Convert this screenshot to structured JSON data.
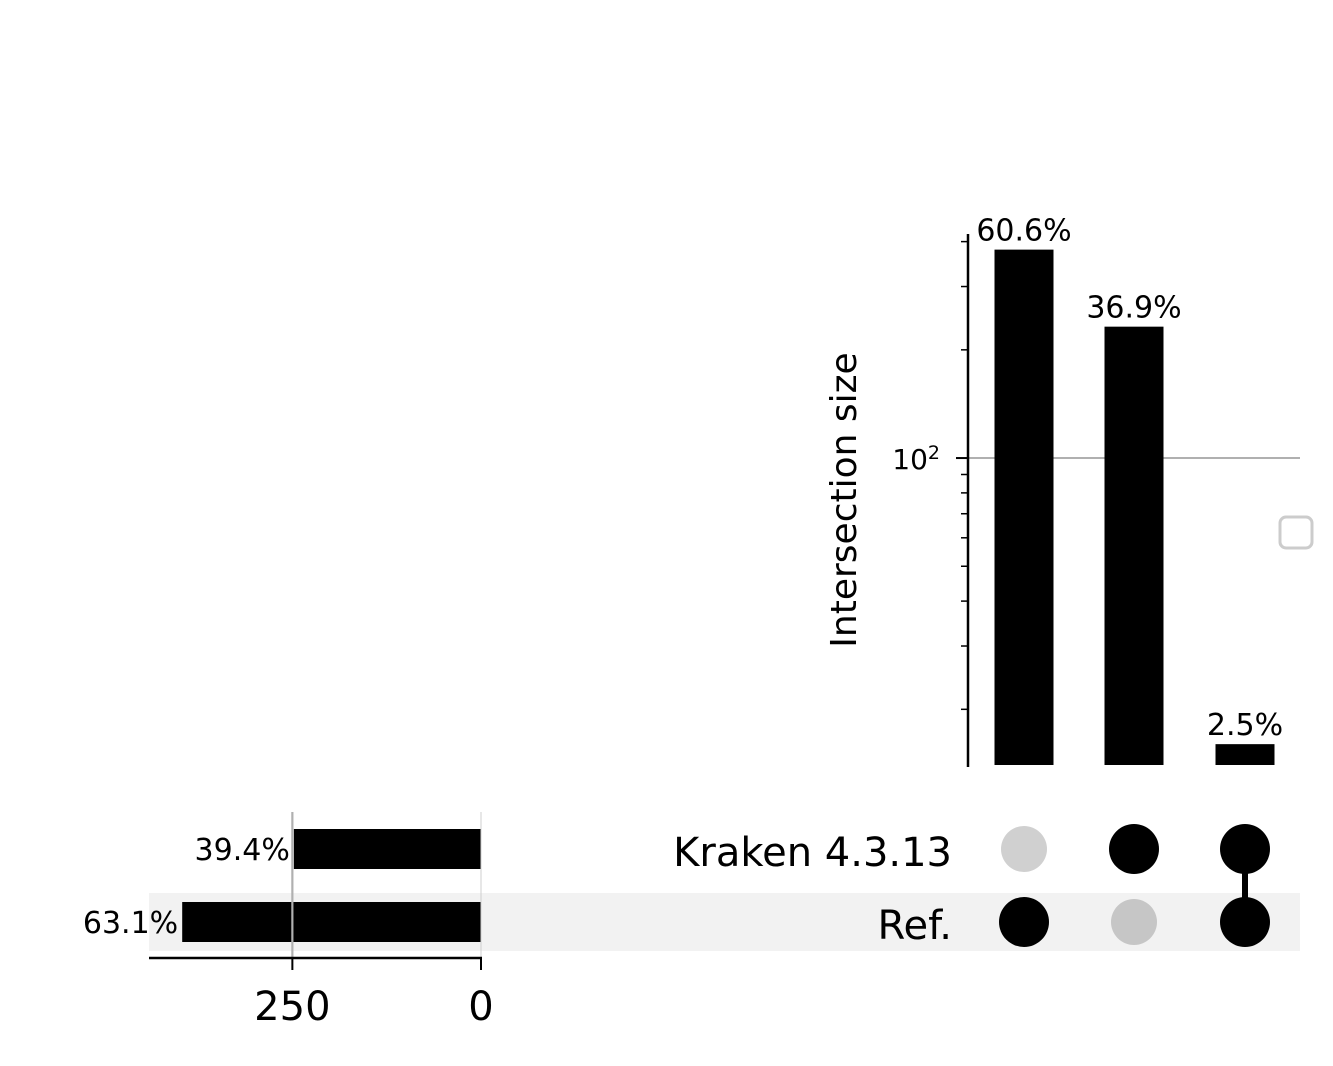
{
  "chart_data": {
    "type": "upset",
    "scale": "log",
    "intersections": {
      "ylabel": "Intersection size",
      "ytick_label": {
        "base": "10",
        "exp": "2"
      },
      "ytick_value": 100,
      "ylim": [
        14,
        420
      ],
      "bars": [
        {
          "value": 380,
          "label": "60.6%",
          "members": [
            "Ref."
          ]
        },
        {
          "value": 232,
          "label": "36.9%",
          "members": [
            "Kraken 4.3.13"
          ]
        },
        {
          "value": 16,
          "label": "2.5%",
          "members": [
            "Kraken 4.3.13",
            "Ref."
          ]
        }
      ]
    },
    "sets": [
      {
        "name": "Kraken 4.3.13",
        "size": 248,
        "label": "39.4%"
      },
      {
        "name": "Ref.",
        "size": 396,
        "label": "63.1%"
      }
    ],
    "set_size_axis": {
      "ticks": [
        250,
        0
      ],
      "tick_labels": [
        "250",
        "0"
      ],
      "xlim": [
        440,
        0
      ]
    },
    "colors": {
      "bar": "#000000",
      "dot_active": "#000000",
      "dot_inactive": "#d0d0d0",
      "row_shade": "#f2f2f2",
      "grid": "#b0b0b0"
    },
    "legend": "right"
  }
}
